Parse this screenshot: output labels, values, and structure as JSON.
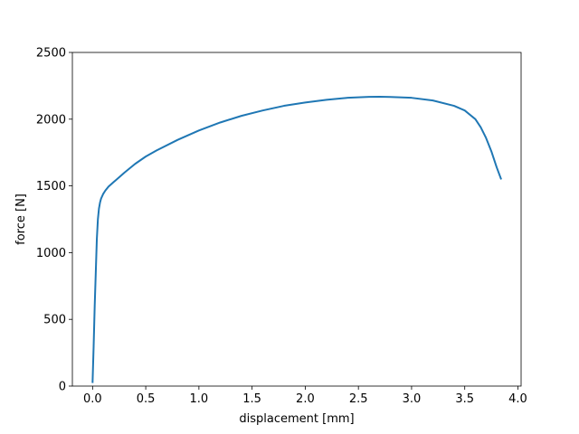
{
  "chart_data": {
    "type": "line",
    "title": "",
    "xlabel": "displacement [mm]",
    "ylabel": "force [N]",
    "xlim": [
      -0.19,
      4.03
    ],
    "ylim": [
      0,
      2500
    ],
    "x_ticks": [
      0.0,
      0.5,
      1.0,
      1.5,
      2.0,
      2.5,
      3.0,
      3.5,
      4.0
    ],
    "x_tick_labels": [
      "0.0",
      "0.5",
      "1.0",
      "1.5",
      "2.0",
      "2.5",
      "3.0",
      "3.5",
      "4.0"
    ],
    "y_ticks": [
      0,
      500,
      1000,
      1500,
      2000,
      2500
    ],
    "y_tick_labels": [
      "0",
      "500",
      "1000",
      "1500",
      "2000",
      "2500"
    ],
    "grid": false,
    "legend": "none",
    "series": [
      {
        "color": "#1f77b4",
        "x": [
          0.0,
          0.01,
          0.02,
          0.03,
          0.04,
          0.05,
          0.06,
          0.07,
          0.08,
          0.1,
          0.12,
          0.15,
          0.2,
          0.3,
          0.4,
          0.5,
          0.6,
          0.8,
          1.0,
          1.2,
          1.4,
          1.6,
          1.8,
          2.0,
          2.2,
          2.4,
          2.6,
          2.7,
          2.8,
          3.0,
          3.2,
          3.4,
          3.5,
          3.6,
          3.65,
          3.7,
          3.75,
          3.8,
          3.84
        ],
        "y": [
          30,
          300,
          600,
          850,
          1100,
          1250,
          1330,
          1375,
          1405,
          1440,
          1465,
          1495,
          1530,
          1600,
          1665,
          1720,
          1765,
          1845,
          1915,
          1975,
          2025,
          2065,
          2100,
          2125,
          2145,
          2160,
          2167,
          2168,
          2166,
          2160,
          2140,
          2100,
          2065,
          2000,
          1940,
          1860,
          1760,
          1640,
          1555
        ]
      }
    ]
  }
}
